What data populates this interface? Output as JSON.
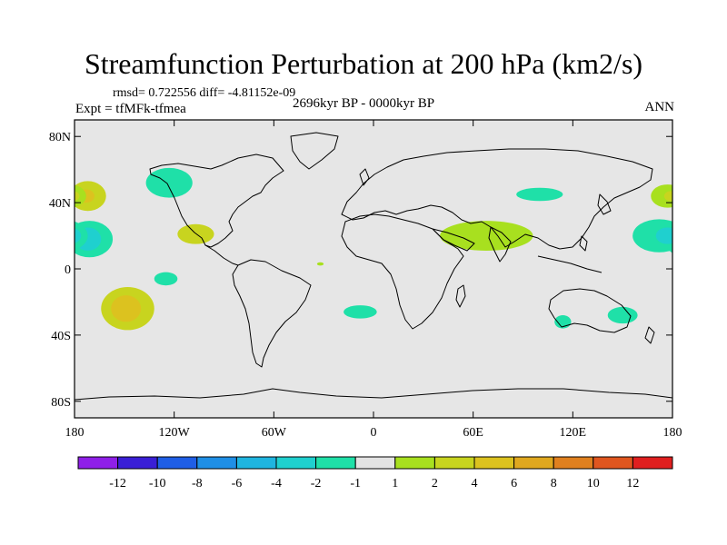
{
  "title": "Streamfunction Perturbation at 200 hPa (km2/s)",
  "stats": "rmsd= 0.722556 diff= -4.81152e-09",
  "experiment": "Expt = tfMFk-tfmea",
  "period": "2696kyr BP - 0000kyr BP",
  "season": "ANN",
  "lat_axis": {
    "ticks": [
      {
        "value": 80,
        "label": "80N"
      },
      {
        "value": 40,
        "label": "40N"
      },
      {
        "value": 0,
        "label": "0"
      },
      {
        "value": -40,
        "label": "40S"
      },
      {
        "value": -80,
        "label": "80S"
      }
    ],
    "range": [
      -90,
      90
    ]
  },
  "lon_axis": {
    "ticks": [
      {
        "value": -180,
        "label": "180"
      },
      {
        "value": -120,
        "label": "120W"
      },
      {
        "value": -60,
        "label": "60W"
      },
      {
        "value": 0,
        "label": "0"
      },
      {
        "value": 60,
        "label": "60E"
      },
      {
        "value": 120,
        "label": "120E"
      },
      {
        "value": 180,
        "label": "180"
      }
    ],
    "range": [
      -180,
      180
    ]
  },
  "colorbar": {
    "colors": [
      "#8f1fe8",
      "#3a1fd6",
      "#1f5ee6",
      "#1f8fe6",
      "#1fb5e0",
      "#1fd0cf",
      "#1fe0a8",
      "#e3e3e3",
      "#a8e01f",
      "#c8d41f",
      "#dcc21f",
      "#e0a81f",
      "#e0801f",
      "#e0561f",
      "#e01f1f"
    ],
    "labels": [
      "-12",
      "-10",
      "-8",
      "-6",
      "-4",
      "-2",
      "-1",
      "1",
      "2",
      "4",
      "6",
      "8",
      "10",
      "12"
    ]
  },
  "anomalies": [
    {
      "name": "north-pacific-east-positive",
      "lon": -172,
      "lat": 44,
      "rlon": 11,
      "rlat": 9,
      "level": 2
    },
    {
      "name": "north-pacific-east-positive-core",
      "lon": -173,
      "lat": 44,
      "rlon": 5,
      "rlat": 4,
      "level": 4
    },
    {
      "name": "subtropical-pacific-east-negative",
      "lon": -171,
      "lat": 18,
      "rlon": 14,
      "rlat": 11,
      "level": -1
    },
    {
      "name": "subtropical-pacific-east-negative-core",
      "lon": -172,
      "lat": 18,
      "rlon": 8,
      "rlat": 7,
      "level": -2
    },
    {
      "name": "south-pacific-positive",
      "lon": -148,
      "lat": -24,
      "rlon": 16,
      "rlat": 13,
      "level": 2
    },
    {
      "name": "south-pacific-positive-core",
      "lon": -149,
      "lat": -24,
      "rlon": 9,
      "rlat": 8,
      "level": 4
    },
    {
      "name": "alaska-negative",
      "lon": -123,
      "lat": 52,
      "rlon": 14,
      "rlat": 9,
      "level": -1
    },
    {
      "name": "mexico-positive",
      "lon": -107,
      "lat": 21,
      "rlon": 11,
      "rlat": 6,
      "level": 2
    },
    {
      "name": "tropical-pacific-south-negative",
      "lon": -125,
      "lat": -6,
      "rlon": 7,
      "rlat": 4,
      "level": -1
    },
    {
      "name": "south-atlantic-negative",
      "lon": -8,
      "lat": -26,
      "rlon": 10,
      "rlat": 4,
      "level": -1
    },
    {
      "name": "equatorial-atlantic-positive",
      "lon": -32,
      "lat": 3,
      "rlon": 2,
      "rlat": 1,
      "level": 1
    },
    {
      "name": "arabia-india-positive",
      "lon": 68,
      "lat": 20,
      "rlon": 28,
      "rlat": 9,
      "level": 1
    },
    {
      "name": "central-asia-negative",
      "lon": 100,
      "lat": 45,
      "rlon": 14,
      "rlat": 4,
      "level": -1
    },
    {
      "name": "indian-ocean-south-negative",
      "lon": 114,
      "lat": -32,
      "rlon": 5,
      "rlat": 4,
      "level": -1
    },
    {
      "name": "australia-east-negative",
      "lon": 150,
      "lat": -28,
      "rlon": 9,
      "rlat": 5,
      "level": -1
    },
    {
      "name": "west-pacific-negative",
      "lon": 172,
      "lat": 20,
      "rlon": 16,
      "rlat": 10,
      "level": -1
    },
    {
      "name": "west-pacific-negative-core",
      "lon": 177,
      "lat": 20,
      "rlon": 7,
      "rlat": 5,
      "level": -2
    },
    {
      "name": "west-pacific-north-positive",
      "lon": 177,
      "lat": 44,
      "rlon": 10,
      "rlat": 7,
      "level": 1
    },
    {
      "name": "west-pacific-north-positive-core",
      "lon": 179,
      "lat": 44,
      "rlon": 4,
      "rlat": 3,
      "level": 2
    }
  ]
}
